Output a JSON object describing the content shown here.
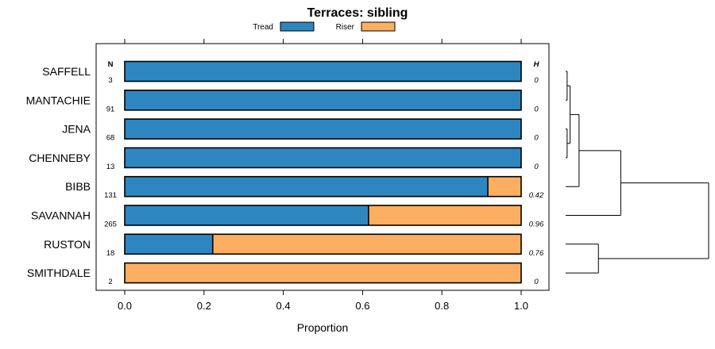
{
  "chart_data": {
    "type": "bar",
    "orientation": "horizontal",
    "stacked": true,
    "title": "Terraces: sibling",
    "xlabel": "Proportion",
    "ylabel": "",
    "xlim": [
      0,
      1
    ],
    "x_ticks": [
      "0.0",
      "0.2",
      "0.4",
      "0.6",
      "0.8",
      "1.0"
    ],
    "x_tick_values": [
      0,
      0.2,
      0.4,
      0.6,
      0.8,
      1.0
    ],
    "n_header": "N",
    "h_header": "H",
    "categories": [
      "SAFFELL",
      "MANTACHIE",
      "JENA",
      "CHENNEBY",
      "BIBB",
      "SAVANNAH",
      "RUSTON",
      "SMITHDALE"
    ],
    "n_values": [
      "3",
      "91",
      "68",
      "13",
      "131",
      "265",
      "18",
      "2"
    ],
    "h_values": [
      "0",
      "0",
      "0",
      "0",
      "0.42",
      "0.96",
      "0.76",
      "0"
    ],
    "series": [
      {
        "name": "Tread",
        "color": "#2e86c1",
        "values": [
          1.0,
          1.0,
          1.0,
          1.0,
          0.916,
          0.615,
          0.222,
          0.0
        ]
      },
      {
        "name": "Riser",
        "color": "#fdae61",
        "values": [
          0.0,
          0.0,
          0.0,
          0.0,
          0.084,
          0.385,
          0.778,
          1.0
        ]
      }
    ],
    "legend_position": "top",
    "dendrogram": {
      "description": "hierarchical clustering of the rows shown to the right of the panel",
      "merges": [
        {
          "a": 0,
          "b": 1,
          "height": 0.01
        },
        {
          "a": 2,
          "b": 3,
          "height": 0.01
        },
        {
          "a": "m0",
          "b": "m1",
          "height": 0.03
        },
        {
          "a": "m2",
          "b": 4,
          "height": 0.09
        },
        {
          "a": "m3",
          "b": 5,
          "height": 0.37
        },
        {
          "a": 6,
          "b": 7,
          "height": 0.22
        },
        {
          "a": "m4",
          "b": "m5",
          "height": 0.96
        }
      ]
    }
  }
}
